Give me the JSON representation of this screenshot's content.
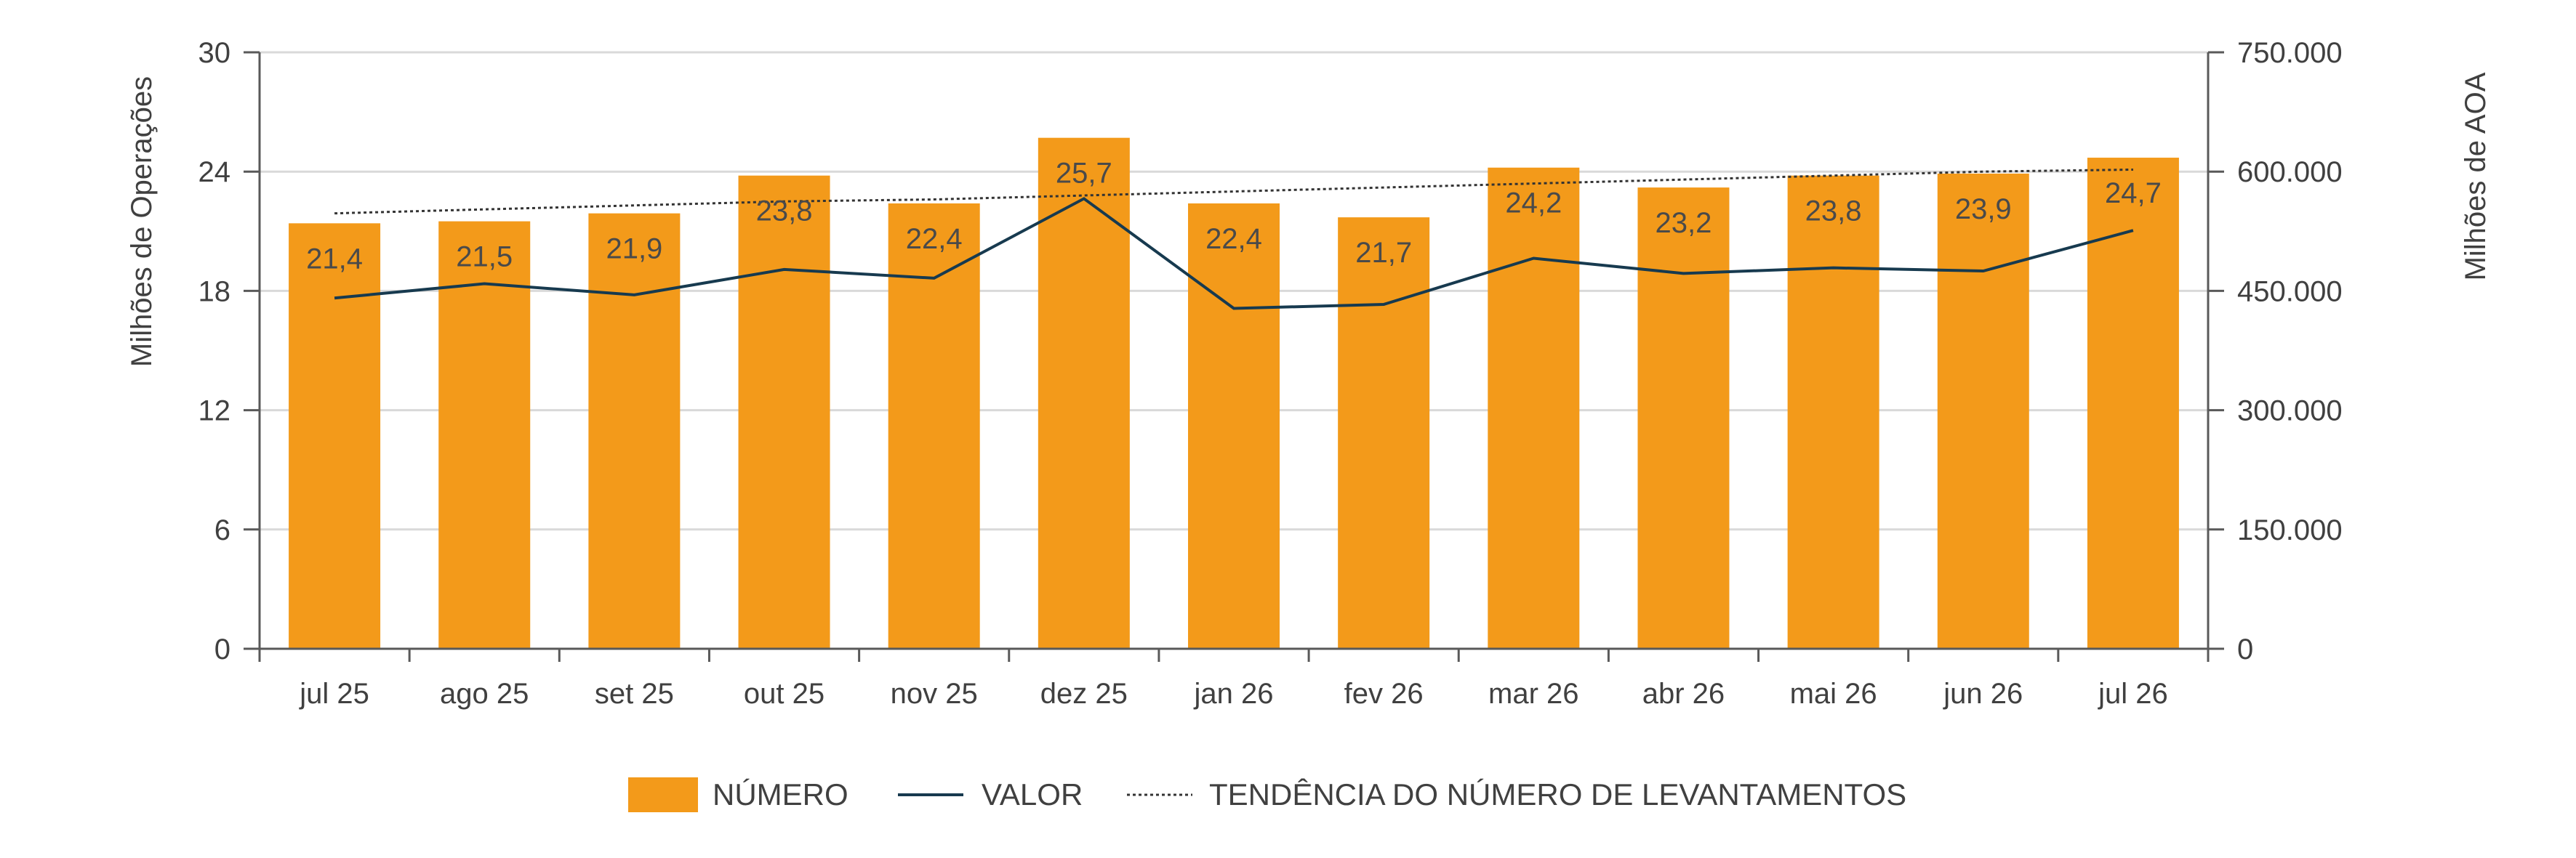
{
  "colors": {
    "bar": "#f39a1a",
    "line": "#173a4f",
    "trend": "#333333",
    "grid": "#d9d9d9",
    "axis": "#595959"
  },
  "chart_data": {
    "type": "bar",
    "categories": [
      "jul 25",
      "ago 25",
      "set 25",
      "out 25",
      "nov 25",
      "dez 25",
      "jan 26",
      "fev 26",
      "mar 26",
      "abr 26",
      "mai 26",
      "jun 26",
      "jul 26"
    ],
    "series": [
      {
        "name": "NÚMERO",
        "type": "bar",
        "axis": "left",
        "values": [
          21.4,
          21.5,
          21.9,
          23.8,
          22.4,
          25.7,
          22.4,
          21.7,
          24.2,
          23.2,
          23.8,
          23.9,
          24.7
        ],
        "labels": [
          "21,4",
          "21,5",
          "21,9",
          "23,8",
          "22,4",
          "25,7",
          "22,4",
          "21,7",
          "24,2",
          "23,2",
          "23,8",
          "23,9",
          "24,7"
        ]
      },
      {
        "name": "VALOR",
        "type": "line",
        "axis": "right",
        "values": [
          441000,
          459000,
          445000,
          477000,
          466000,
          566000,
          428000,
          433000,
          491000,
          472000,
          479000,
          475000,
          526000
        ]
      },
      {
        "name": "TENDÊNCIA DO NÚMERO DE LEVANTAMENTOS",
        "type": "trendline",
        "axis": "left",
        "values": [
          21.9,
          22.1,
          22.3,
          22.5,
          22.6,
          22.8,
          23.0,
          23.2,
          23.4,
          23.6,
          23.8,
          24.0,
          24.1
        ]
      }
    ],
    "ylabel": "Milhões de Operações",
    "y2label": "Milhões de AOA",
    "ylim": [
      0,
      30
    ],
    "y2lim": [
      0,
      750000
    ],
    "yticks": [
      "0",
      "6",
      "12",
      "18",
      "24",
      "30"
    ],
    "y2ticks": [
      "0",
      "150.000",
      "300.000",
      "450.000",
      "600.000",
      "750.000"
    ],
    "grid": true,
    "legend_position": "bottom"
  }
}
